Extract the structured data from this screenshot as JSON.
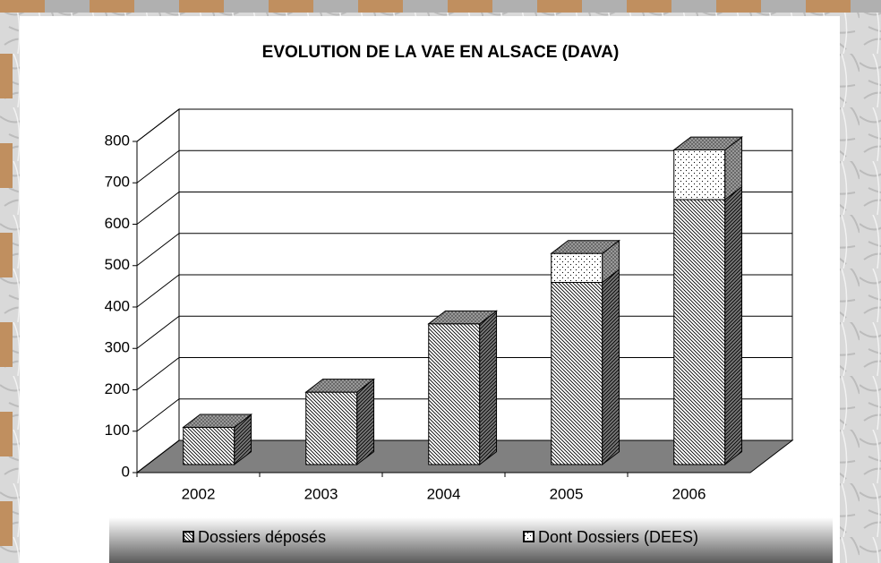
{
  "chart_data": {
    "type": "bar3d_stacked",
    "title": "EVOLUTION DE LA VAE EN ALSACE (DAVA)",
    "categories": [
      "2002",
      "2003",
      "2004",
      "2005",
      "2006"
    ],
    "series": [
      {
        "name": "Dossiers déposés",
        "color": "#ffffff",
        "values": [
          90,
          175,
          340,
          440,
          640
        ]
      },
      {
        "name": "Dont Dossiers (DEES)",
        "color": "#ffffff",
        "values": [
          0,
          0,
          0,
          70,
          120
        ]
      }
    ],
    "ylim": [
      0,
      800
    ],
    "yticks": [
      0,
      100,
      200,
      300,
      400,
      500,
      600,
      700,
      800
    ],
    "grid": true,
    "legend": "bottom"
  }
}
